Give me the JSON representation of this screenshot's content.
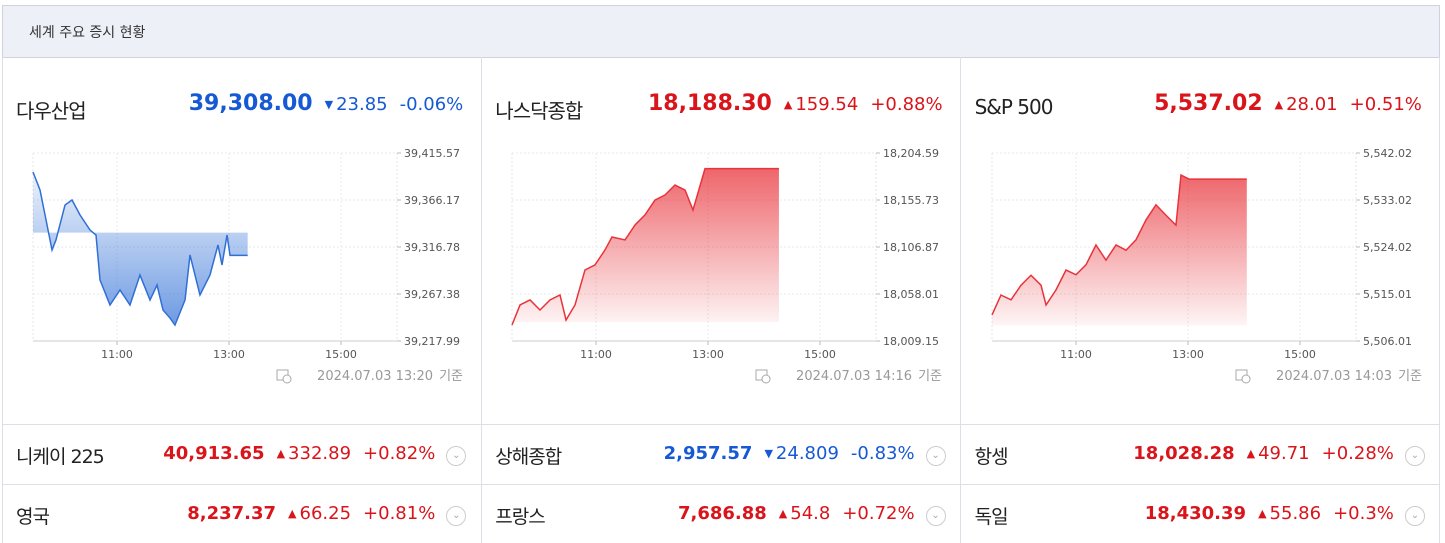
{
  "header": {
    "title": "세계 주요 증시 현황"
  },
  "panels": [
    {
      "name": "다우산업",
      "value": "39,308.00",
      "change": "23.85",
      "change_pct": "-0.06%",
      "direction": "down",
      "timestamp": "2024.07.03 13:20",
      "timestamp_suffix": "기준"
    },
    {
      "name": "나스닥종합",
      "value": "18,188.30",
      "change": "159.54",
      "change_pct": "+0.88%",
      "direction": "up",
      "timestamp": "2024.07.03 14:16",
      "timestamp_suffix": "기준"
    },
    {
      "name": "S&P 500",
      "value": "5,537.02",
      "change": "28.01",
      "change_pct": "+0.51%",
      "direction": "up",
      "timestamp": "2024.07.03 14:03",
      "timestamp_suffix": "기준"
    }
  ],
  "chart_data": [
    {
      "type": "line",
      "color": "#2f6fd6",
      "grid": true,
      "x": [
        570,
        577.5,
        582.9,
        590.4,
        594.6,
        604.3,
        611.8,
        620.4,
        631.1,
        637.5,
        641.8,
        652.5,
        663.2,
        673.9,
        684.6,
        695.4,
        702.9,
        709.3,
        716.8,
        722.1,
        732.9,
        738.2,
        748.9,
        759.6,
        768.2,
        772.5,
        777.9,
        781.1,
        800
      ],
      "values": [
        39395.6,
        39376.7,
        39350.4,
        39313.6,
        39324.1,
        39360.9,
        39366.2,
        39350.4,
        39334.6,
        39329.4,
        39282.1,
        39255.8,
        39271.6,
        39255.8,
        39287.3,
        39261.1,
        39276.8,
        39250.5,
        39242.1,
        39234.7,
        39261.1,
        39308.4,
        39266.3,
        39287.3,
        39318.9,
        39297.9,
        39329.4,
        39308,
        39308
      ],
      "xlim": [
        570,
        960
      ],
      "ylim": [
        39217.99,
        39415.57
      ],
      "xticks": [
        {
          "value": 660,
          "label": "11:00"
        },
        {
          "value": 780,
          "label": "13:00"
        },
        {
          "value": 900,
          "label": "15:00"
        }
      ],
      "yticks": [
        {
          "value": 39217.99,
          "label": "39,217.99"
        },
        {
          "value": 39267.38,
          "label": "39,267.38"
        },
        {
          "value": 39316.78,
          "label": "39,316.78"
        },
        {
          "value": 39366.17,
          "label": "39,366.17"
        },
        {
          "value": 39415.57,
          "label": "39,415.57"
        }
      ]
    },
    {
      "type": "line",
      "color": "#e8333a",
      "grid": true,
      "x": [
        570,
        578.6,
        589.3,
        600,
        610.7,
        621.4,
        627.9,
        637.5,
        648.2,
        658.9,
        669.6,
        677.1,
        691.1,
        701.8,
        712.5,
        723.2,
        733.9,
        744.6,
        755.4,
        763.9,
        776.8,
        856
      ],
      "values": [
        18025.8,
        18046.6,
        18051.8,
        18041.4,
        18051.8,
        18057,
        18031,
        18046.6,
        18083,
        18088.2,
        18103.7,
        18117.3,
        18114.2,
        18129.8,
        18140.2,
        18155.7,
        18160.9,
        18171.3,
        18166.1,
        18145.3,
        18188.3,
        18188.3
      ],
      "xlim": [
        570,
        960
      ],
      "ylim": [
        18009.15,
        18204.59
      ],
      "xticks": [
        {
          "value": 660,
          "label": "11:00"
        },
        {
          "value": 780,
          "label": "13:00"
        },
        {
          "value": 900,
          "label": "15:00"
        }
      ],
      "yticks": [
        {
          "value": 18009.15,
          "label": "18,009.15"
        },
        {
          "value": 18058.01,
          "label": "18,058.01"
        },
        {
          "value": 18106.87,
          "label": "18,106.87"
        },
        {
          "value": 18155.73,
          "label": "18,155.73"
        },
        {
          "value": 18204.59,
          "label": "18,204.59"
        }
      ]
    },
    {
      "type": "line",
      "color": "#e8333a",
      "grid": true,
      "x": [
        570,
        579.6,
        590.4,
        601.1,
        611.8,
        622.5,
        627.9,
        638.6,
        649.3,
        660,
        670.7,
        681.4,
        692.1,
        702.9,
        713.6,
        724.3,
        735,
        745.7,
        756.4,
        767.1,
        772.5,
        781,
        843
      ],
      "values": [
        5511,
        5514.8,
        5513.9,
        5516.7,
        5518.6,
        5516.7,
        5512.9,
        5515.8,
        5519.6,
        5518.7,
        5520.6,
        5524.4,
        5521.5,
        5524.4,
        5523.4,
        5525.4,
        5529.2,
        5532.1,
        5530.1,
        5528.2,
        5537.8,
        5537.02,
        5537.02
      ],
      "xlim": [
        570,
        960
      ],
      "ylim": [
        5506.01,
        5542.02
      ],
      "xticks": [
        {
          "value": 660,
          "label": "11:00"
        },
        {
          "value": 780,
          "label": "13:00"
        },
        {
          "value": 900,
          "label": "15:00"
        }
      ],
      "yticks": [
        {
          "value": 5506.01,
          "label": "5,506.01"
        },
        {
          "value": 5515.01,
          "label": "5,515.01"
        },
        {
          "value": 5524.02,
          "label": "5,524.02"
        },
        {
          "value": 5533.02,
          "label": "5,533.02"
        },
        {
          "value": 5542.02,
          "label": "5,542.02"
        }
      ]
    }
  ],
  "indices": [
    [
      {
        "name": "니케이 225",
        "value": "40,913.65",
        "change": "332.89",
        "change_pct": "+0.82%",
        "direction": "up"
      },
      {
        "name": "상해종합",
        "value": "2,957.57",
        "change": "24.809",
        "change_pct": "-0.83%",
        "direction": "down"
      },
      {
        "name": "항셍",
        "value": "18,028.28",
        "change": "49.71",
        "change_pct": "+0.28%",
        "direction": "up"
      }
    ],
    [
      {
        "name": "영국",
        "value": "8,237.37",
        "change": "66.25",
        "change_pct": "+0.81%",
        "direction": "up"
      },
      {
        "name": "프랑스",
        "value": "7,686.88",
        "change": "54.8",
        "change_pct": "+0.72%",
        "direction": "up"
      },
      {
        "name": "독일",
        "value": "18,430.39",
        "change": "55.86",
        "change_pct": "+0.3%",
        "direction": "up"
      }
    ]
  ]
}
